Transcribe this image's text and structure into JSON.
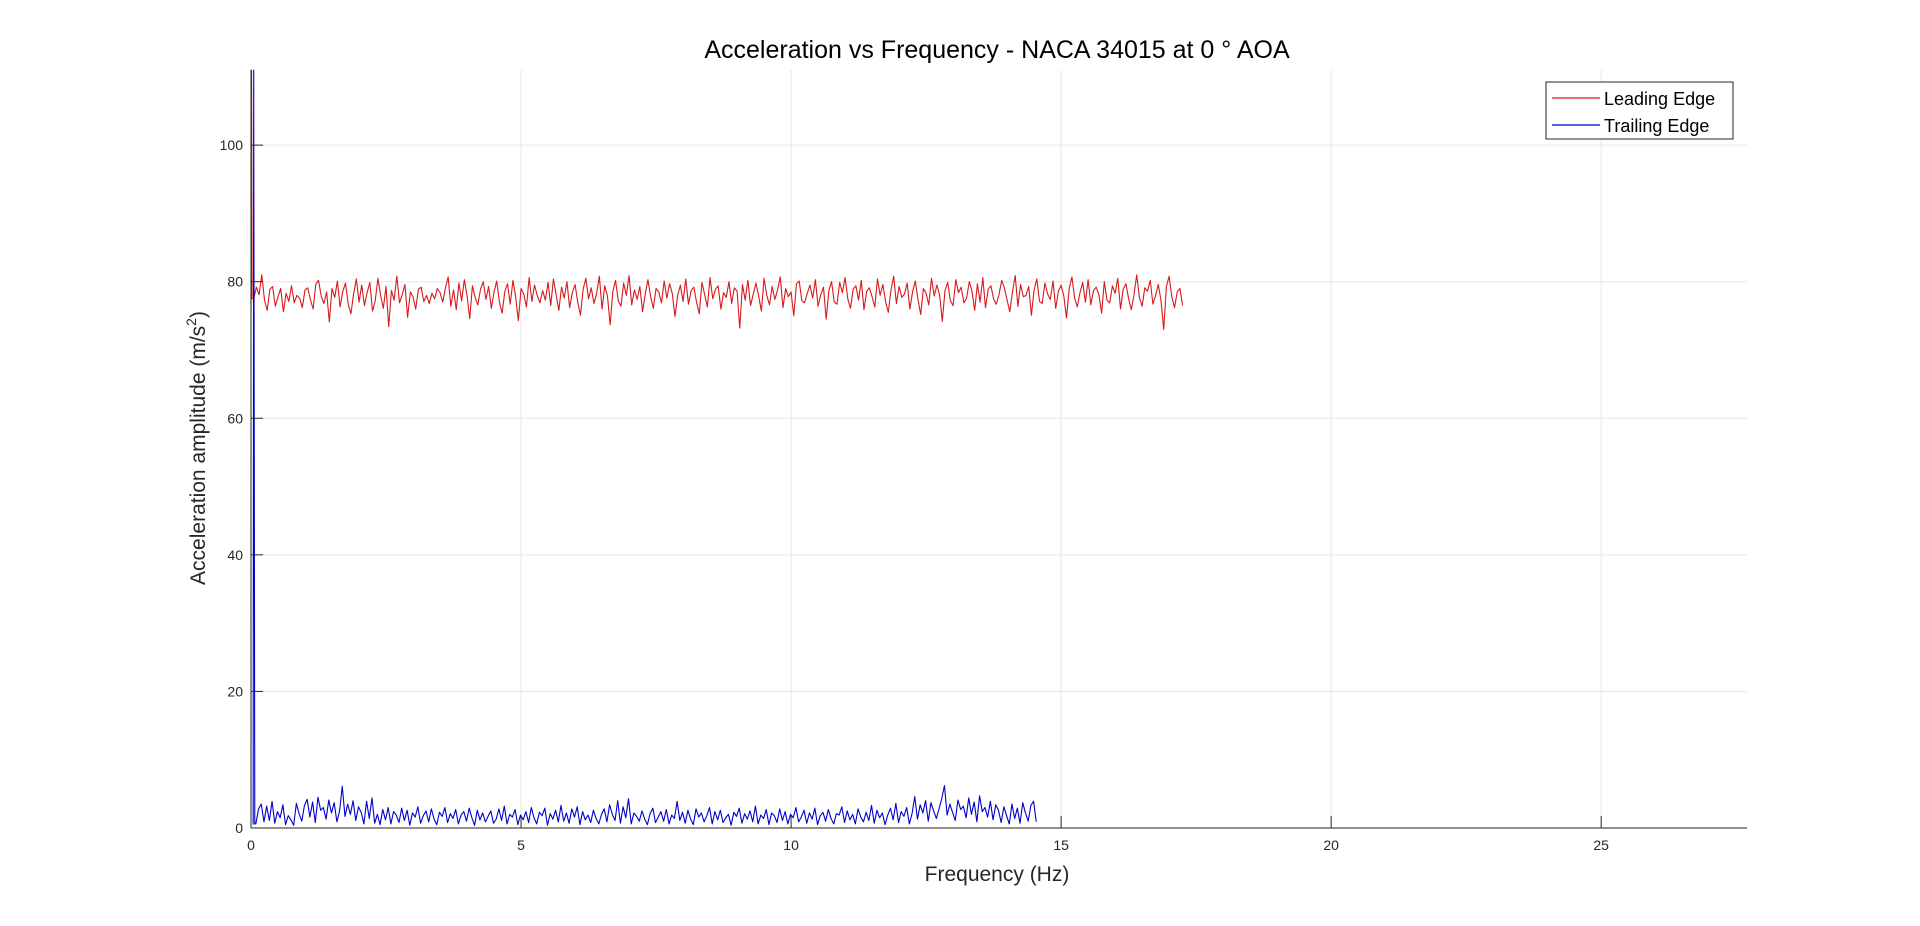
{
  "chart_data": {
    "type": "line",
    "title": "Acceleration vs Frequency - NACA 34015 at 0 ° AOA",
    "xlabel": "Frequency (Hz)",
    "ylabel_main": "Acceleration amplitude (m/s",
    "ylabel_sup": "2",
    "ylabel_close": ")",
    "xlim": [
      0,
      27.7
    ],
    "ylim": [
      0,
      111
    ],
    "x_ticks": [
      0,
      5,
      10,
      15,
      20,
      25
    ],
    "y_ticks": [
      0,
      20,
      40,
      60,
      80,
      100
    ],
    "x_tick_labels": [
      "0",
      "5",
      "10",
      "15",
      "20",
      "25"
    ],
    "y_tick_labels": [
      "0",
      "20",
      "40",
      "60",
      "80",
      "100"
    ],
    "grid": true,
    "legend_position": "top-right",
    "series": [
      {
        "name": "Leading Edge",
        "color": "#d7191c",
        "x_start": 0.0,
        "x_step": 0.05,
        "spike": [
          [
            0.0,
            76.0
          ],
          [
            0.01,
            111.0
          ],
          [
            0.02,
            77.5
          ]
        ],
        "values": [
          77.5,
          79.2,
          78.1,
          81.0,
          77.3,
          75.8,
          78.9,
          79.3,
          76.4,
          77.8,
          79.0,
          75.6,
          78.3,
          77.1,
          79.4,
          76.9,
          78.0,
          77.6,
          76.2,
          78.8,
          79.1,
          77.4,
          76.0,
          79.6,
          80.2,
          77.9,
          76.8,
          78.5,
          74.1,
          79.0,
          77.7,
          80.1,
          76.3,
          78.6,
          79.8,
          76.7,
          75.3,
          78.2,
          80.4,
          77.0,
          79.5,
          76.5,
          78.4,
          79.9,
          75.7,
          77.2,
          80.5,
          78.0,
          76.1,
          79.3,
          73.4,
          78.7,
          77.3,
          80.8,
          76.9,
          78.1,
          79.6,
          74.8,
          78.5,
          77.8,
          76.0,
          78.9,
          79.2,
          77.1,
          78.0,
          76.8,
          78.3,
          77.5,
          79.0,
          78.4,
          77.0,
          79.1,
          80.7,
          76.4,
          78.8,
          75.9,
          79.8,
          77.2,
          80.3,
          78.0,
          74.6,
          79.4,
          77.7,
          76.6,
          78.9,
          80.0,
          77.4,
          79.3,
          76.1,
          78.5,
          80.1,
          77.0,
          75.4,
          78.6,
          79.7,
          76.7,
          80.2,
          77.8,
          74.3,
          79.0,
          78.2,
          76.3,
          80.6,
          77.1,
          79.5,
          78.0,
          76.9,
          78.7,
          77.3,
          79.9,
          76.5,
          80.4,
          78.1,
          75.8,
          79.2,
          77.6,
          80.0,
          76.2,
          78.4,
          79.6,
          77.0,
          75.1,
          78.9,
          80.5,
          77.5,
          79.1,
          76.8,
          78.3,
          80.8,
          76.0,
          79.4,
          77.9,
          73.7,
          78.6,
          80.2,
          77.2,
          76.4,
          79.8,
          78.0,
          80.9,
          76.6,
          78.8,
          77.4,
          79.3,
          75.6,
          78.2,
          80.3,
          77.8,
          76.1,
          79.0,
          78.5,
          76.9,
          80.1,
          77.6,
          79.7,
          78.3,
          74.9,
          78.0,
          79.5,
          77.1,
          80.4,
          76.7,
          78.7,
          79.2,
          77.0,
          75.3,
          79.9,
          78.1,
          76.3,
          80.6,
          77.5,
          78.9,
          79.4,
          76.0,
          78.4,
          77.7,
          80.0,
          76.8,
          79.1,
          78.6,
          73.2,
          79.6,
          77.3,
          80.2,
          76.5,
          78.2,
          79.8,
          77.9,
          75.7,
          80.5,
          78.0,
          76.6,
          79.3,
          77.4,
          78.8,
          80.7,
          76.2,
          79.0,
          77.8,
          78.5,
          75.0,
          79.7,
          80.1,
          77.2,
          76.9,
          78.3,
          79.5,
          77.6,
          80.3,
          76.4,
          78.1,
          79.2,
          74.5,
          78.7,
          80.0,
          77.0,
          76.7,
          79.9,
          78.4,
          80.6,
          77.5,
          76.1,
          78.9,
          79.4,
          77.3,
          80.2,
          75.9,
          78.6,
          79.1,
          77.8,
          76.3,
          80.4,
          78.0,
          79.6,
          77.1,
          75.5,
          78.8,
          80.8,
          76.8,
          79.3,
          77.7,
          78.2,
          79.8,
          76.0,
          78.5,
          80.1,
          77.4,
          75.2,
          79.0,
          78.3,
          76.6,
          80.5,
          77.9,
          79.5,
          78.1,
          74.2,
          78.7,
          79.9,
          77.2,
          76.5,
          80.3,
          78.4,
          79.2,
          76.9,
          77.6,
          80.0,
          78.6,
          75.8,
          79.7,
          77.0,
          80.6,
          76.2,
          78.9,
          79.4,
          77.5,
          76.7,
          78.1,
          80.2,
          79.1,
          77.3,
          75.6,
          78.5,
          80.9,
          76.4,
          79.6,
          77.8,
          78.0,
          79.3,
          75.1,
          78.8,
          80.4,
          77.1,
          76.8,
          79.8,
          78.2,
          77.4,
          80.1,
          76.1,
          78.6,
          79.5,
          77.9,
          74.7,
          79.0,
          80.7,
          77.6,
          76.3,
          78.4,
          79.9,
          77.0,
          80.3,
          76.6,
          78.7,
          79.2,
          78.1,
          75.4,
          80.0,
          77.3,
          76.9,
          79.4,
          78.3,
          80.5,
          76.0,
          78.9,
          79.7,
          77.5,
          75.9,
          78.1,
          81.0,
          77.7,
          76.4,
          79.1,
          78.6,
          80.2,
          76.7,
          78.0,
          79.6,
          77.2,
          73.0,
          79.3,
          80.8,
          77.8,
          76.2,
          78.5,
          79.0,
          76.5
        ]
      },
      {
        "name": "Trailing Edge",
        "color": "#0000cc",
        "x_start": 0.04,
        "x_step": 0.05,
        "spike": [
          [
            0.0,
            0.5
          ],
          [
            0.01,
            111.0
          ],
          [
            0.03,
            0.6
          ]
        ],
        "values": [
          0.6,
          2.8,
          3.5,
          0.9,
          3.2,
          1.1,
          3.9,
          0.7,
          2.4,
          1.5,
          3.4,
          0.5,
          1.8,
          1.2,
          0.4,
          3.6,
          2.1,
          1.0,
          3.3,
          4.2,
          1.6,
          3.8,
          0.8,
          4.5,
          2.6,
          3.0,
          1.3,
          4.1,
          2.2,
          3.7,
          0.9,
          2.5,
          6.1,
          1.7,
          3.5,
          2.0,
          4.0,
          1.1,
          3.1,
          2.3,
          0.6,
          3.9,
          1.4,
          4.4,
          0.7,
          2.0,
          0.5,
          2.7,
          1.2,
          3.0,
          0.6,
          2.4,
          1.9,
          0.8,
          2.9,
          1.1,
          2.6,
          0.4,
          2.2,
          1.6,
          3.1,
          0.7,
          1.8,
          2.5,
          0.9,
          2.8,
          1.3,
          0.5,
          2.3,
          1.7,
          3.0,
          0.8,
          2.1,
          1.4,
          2.7,
          0.6,
          1.9,
          2.4,
          1.0,
          2.9,
          1.5,
          0.4,
          2.6,
          1.2,
          2.2,
          0.9,
          1.7,
          2.5,
          0.7,
          1.3,
          2.8,
          1.1,
          3.2,
          0.6,
          2.0,
          1.6,
          2.7,
          0.5,
          1.9,
          1.2,
          2.4,
          0.8,
          3.0,
          1.5,
          0.6,
          2.3,
          1.8,
          2.9,
          0.4,
          2.1,
          1.3,
          2.6,
          0.9,
          3.3,
          1.0,
          2.2,
          0.7,
          2.8,
          1.6,
          3.1,
          0.5,
          2.4,
          1.2,
          1.9,
          0.8,
          2.6,
          1.4,
          0.6,
          2.0,
          2.8,
          0.9,
          3.4,
          2.0,
          1.1,
          4.0,
          0.7,
          3.1,
          1.5,
          4.3,
          0.6,
          2.2,
          1.7,
          1.0,
          2.5,
          1.3,
          0.5,
          2.1,
          2.9,
          0.8,
          1.6,
          2.4,
          1.0,
          2.7,
          0.6,
          1.9,
          1.4,
          3.9,
          1.1,
          2.3,
          0.7,
          2.6,
          1.3,
          0.5,
          2.8,
          1.6,
          2.2,
          0.9,
          1.8,
          3.0,
          0.6,
          2.4,
          1.2,
          2.6,
          0.8,
          1.5,
          2.0,
          0.4,
          2.3,
          1.7,
          2.9,
          0.7,
          2.1,
          1.3,
          2.5,
          0.9,
          3.2,
          0.6,
          1.9,
          1.4,
          2.7,
          0.5,
          2.2,
          1.8,
          0.8,
          2.8,
          1.1,
          2.4,
          0.6,
          2.0,
          1.5,
          3.0,
          0.9,
          1.6,
          2.6,
          0.7,
          2.2,
          1.3,
          2.9,
          0.5,
          1.8,
          2.3,
          1.0,
          2.7,
          1.4,
          0.6,
          2.1,
          1.9,
          3.1,
          0.8,
          2.5,
          1.2,
          2.0,
          0.6,
          2.8,
          1.6,
          0.9,
          2.3,
          1.1,
          3.3,
          0.7,
          2.6,
          1.5,
          2.2,
          0.5,
          1.9,
          2.9,
          1.2,
          3.6,
          0.8,
          2.4,
          1.7,
          3.0,
          0.6,
          2.1,
          4.6,
          1.3,
          3.4,
          2.2,
          4.0,
          1.0,
          3.7,
          2.5,
          1.4,
          2.8,
          4.3,
          6.2,
          1.9,
          3.5,
          2.3,
          1.1,
          4.1,
          2.7,
          3.2,
          1.5,
          4.4,
          2.0,
          3.8,
          0.9,
          4.7,
          2.4,
          3.0,
          1.6,
          3.9,
          1.2,
          3.4,
          2.6,
          0.8,
          3.1,
          1.8,
          0.6,
          3.5,
          1.4,
          2.9,
          0.7,
          3.7,
          2.2,
          1.0,
          3.3,
          3.9,
          0.9
        ]
      }
    ]
  }
}
